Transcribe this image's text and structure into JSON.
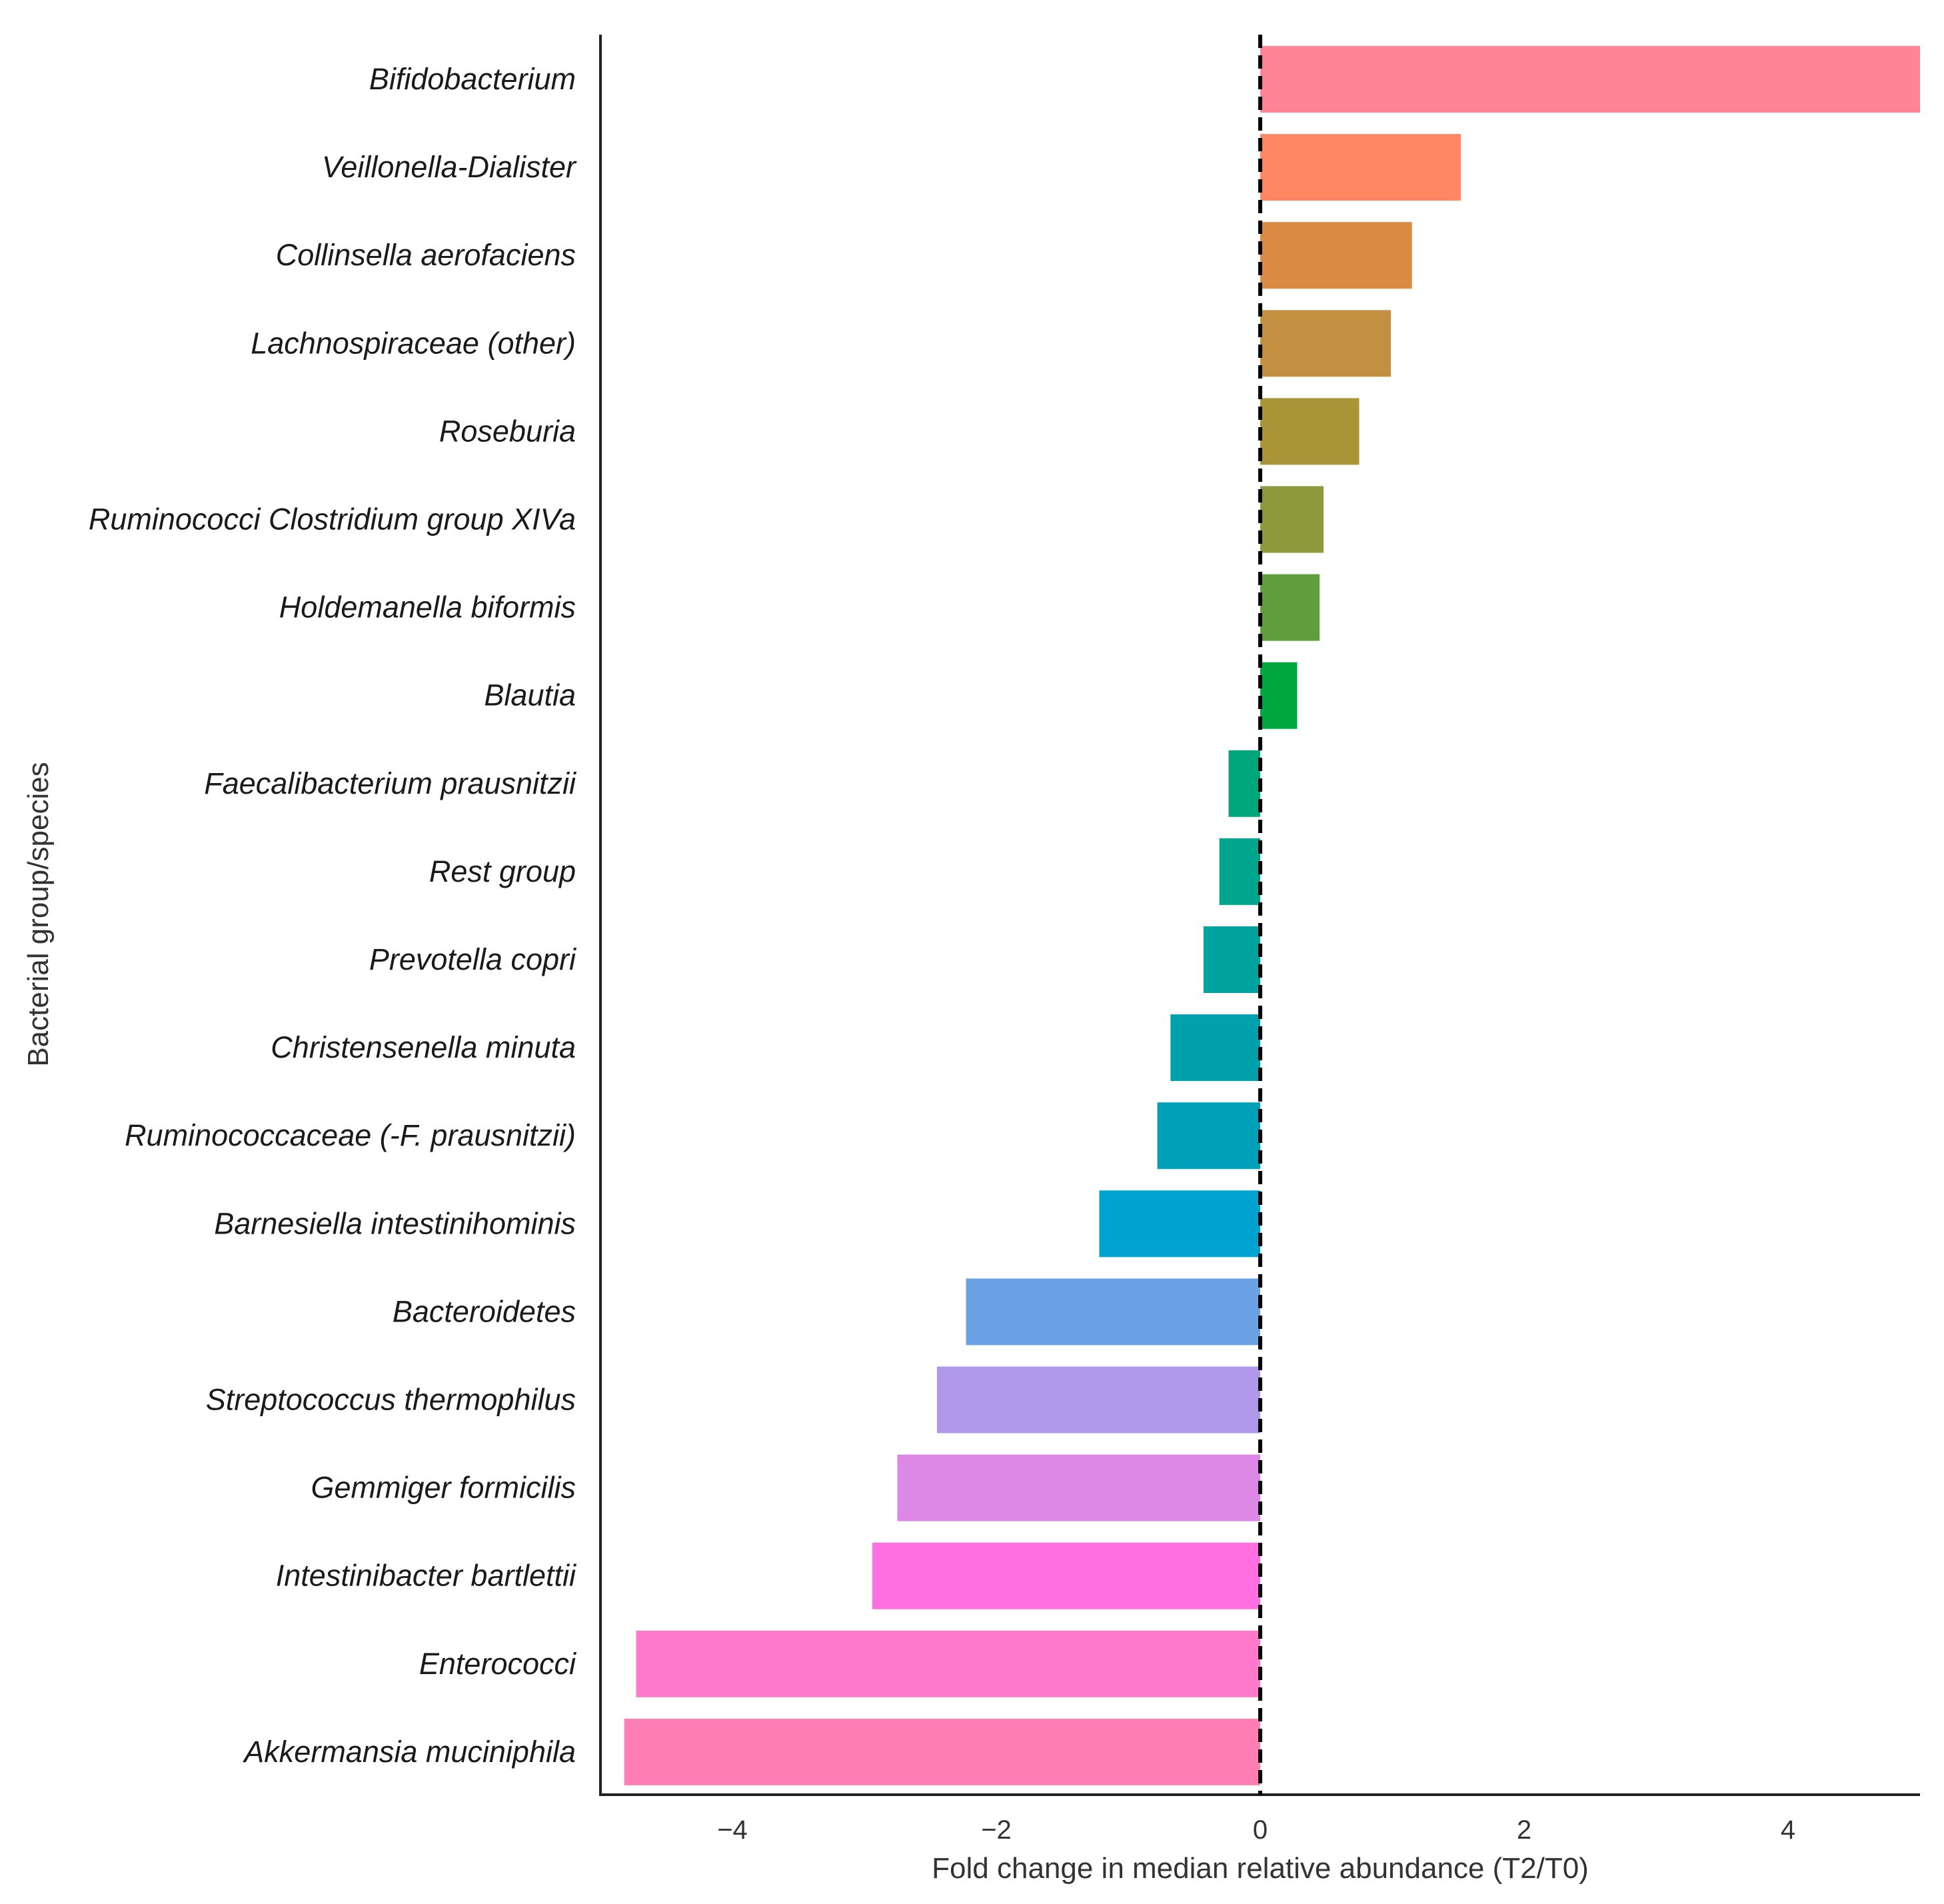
{
  "chart_data": {
    "type": "bar",
    "orientation": "horizontal",
    "title": "",
    "xlabel": "Fold change in median relative abundance (T2/T0)",
    "ylabel": "Bacterial group/species",
    "xlim": [
      -5,
      5
    ],
    "xticks": [
      -4,
      -2,
      0,
      2,
      4
    ],
    "xtick_labels": [
      "−4",
      "−2",
      "0",
      "2",
      "4"
    ],
    "reference_line": {
      "x": 0,
      "style": "dashed"
    },
    "grid": false,
    "legend": "none",
    "categories": [
      "Bifidobacterium",
      "Veillonella-Dialister",
      "Collinsella aerofaciens",
      "Lachnospiraceae (other)",
      "Roseburia",
      "Ruminococci Clostridium group XIVa",
      "Holdemanella biformis",
      "Blautia",
      "Faecalibacterium prausnitzii",
      "Rest group",
      "Prevotella copri",
      "Christensenella minuta",
      "Ruminococcaceae (-F. prausnitzii)",
      "Barnesiella intestinihominis",
      "Bacteroidetes",
      "Streptococcus thermophilus",
      "Gemmiger formicilis",
      "Intestinibacter bartlettii",
      "Enterococci",
      "Akkermansia muciniphila"
    ],
    "values": [
      5.0,
      1.52,
      1.15,
      0.99,
      0.75,
      0.48,
      0.45,
      0.28,
      -0.24,
      -0.31,
      -0.43,
      -0.68,
      -0.78,
      -1.22,
      -2.23,
      -2.45,
      -2.75,
      -2.94,
      -4.73,
      -4.82
    ],
    "colors": [
      "#FF8495",
      "#FF8763",
      "#DA8A43",
      "#C29040",
      "#A99437",
      "#8D993B",
      "#5F9E3A",
      "#00A73F",
      "#00A67C",
      "#00A58E",
      "#00A39E",
      "#00A1AD",
      "#00A1B8",
      "#00A2CF",
      "#6BA2E6",
      "#B197E9",
      "#DD88E7",
      "#FF6FE2",
      "#FF7ACC",
      "#FF7EB5"
    ]
  }
}
